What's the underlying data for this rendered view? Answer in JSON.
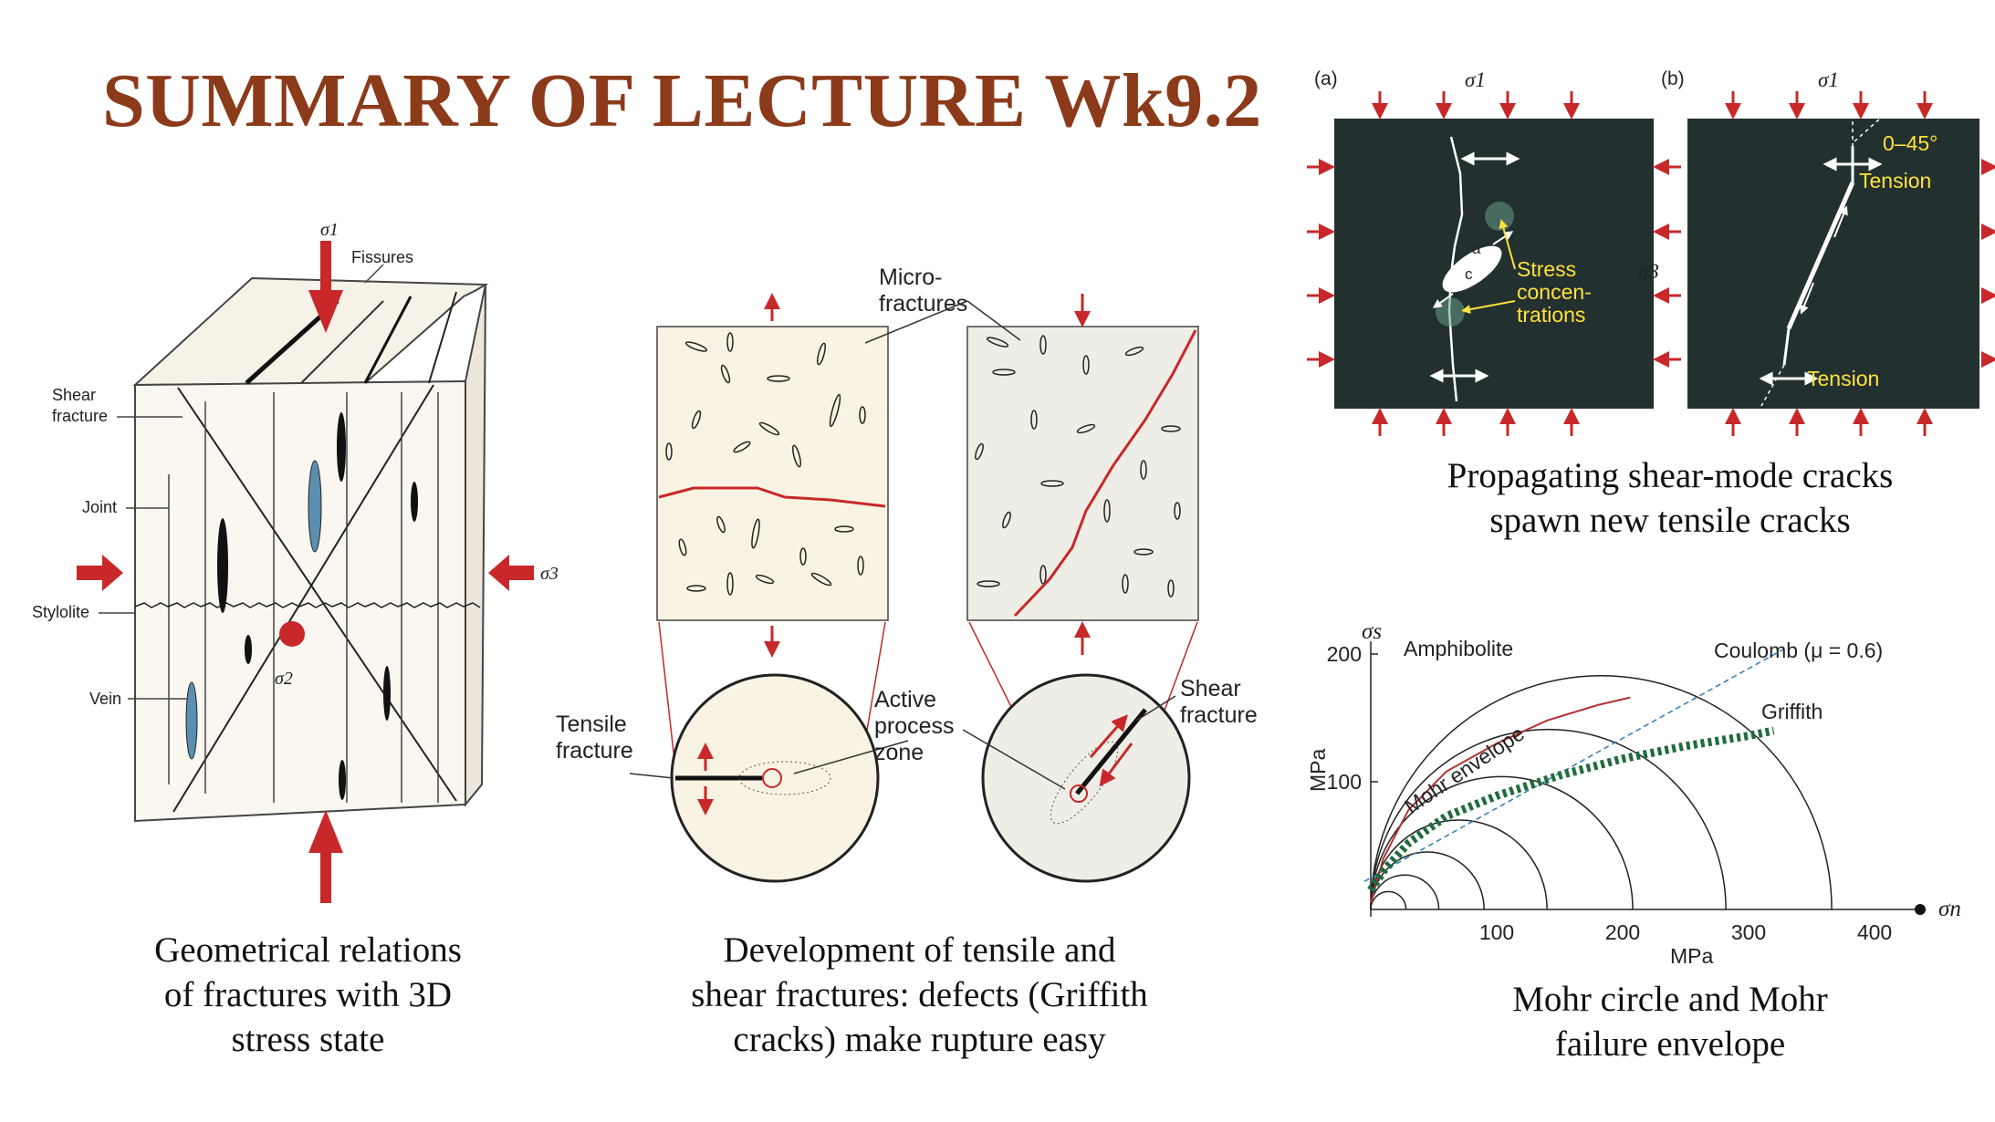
{
  "title": "SUMMARY OF LECTURE Wk9.2",
  "colors": {
    "title": "#8b3a1a",
    "arrow": "#c8282a",
    "dark_panel": "#233030",
    "highlight": "#ffe33a",
    "griffith": "#1f6b3c",
    "coulomb": "#2a7db5",
    "mohr_env": "#b43232",
    "cream": "#f8f3e2"
  },
  "fig1": {
    "labels": {
      "sigma1": "σ1",
      "sigma2": "σ2",
      "sigma3": "σ3",
      "fissures": "Fissures",
      "shear1": "Shear",
      "shear2": "fracture",
      "joint": "Joint",
      "stylolite": "Stylolite",
      "vein": "Vein"
    },
    "caption": [
      "Geometrical relations",
      "of fractures with 3D",
      "stress state"
    ]
  },
  "fig2": {
    "labels": {
      "micro1": "Micro-",
      "micro2": "fractures",
      "tensile1": "Tensile",
      "tensile2": "fracture",
      "active1": "Active",
      "active2": "process",
      "active3": "zone",
      "shear1": "Shear",
      "shear2": "fracture"
    },
    "caption": [
      "Development of tensile and",
      "shear fractures: defects (Griffith",
      "cracks) make rupture easy"
    ]
  },
  "fig3": {
    "labels": {
      "a": "(a)",
      "b": "(b)",
      "sigma1a": "σ1",
      "sigma1b": "σ1",
      "sigma3": "σ3",
      "stress1": "Stress",
      "stress2": "concen-",
      "stress3": "trations",
      "angle": "0–45°",
      "tension_top": "Tension",
      "tension_bottom": "Tension",
      "ell_a": "a",
      "ell_c": "c"
    },
    "caption": [
      "Propagating shear-mode cracks",
      "spawn new tensile cracks"
    ]
  },
  "fig4": {
    "labels": {
      "amphibolite": "Amphibolite",
      "coulomb": "Coulomb (μ = 0.6)",
      "griffith": "Griffith",
      "envelope": "Mohr envelope",
      "ylabel": "MPa",
      "xlabel": "MPa",
      "sigma_s": "σs",
      "sigma_n": "σn"
    },
    "x_ticks": [
      "100",
      "200",
      "300",
      "400"
    ],
    "y_ticks": [
      "100",
      "200"
    ],
    "caption": [
      "Mohr circle and Mohr",
      "failure envelope"
    ]
  },
  "chart_data": {
    "type": "line",
    "xlabel": "MPa",
    "ylabel": "MPa",
    "xlim": [
      0,
      430
    ],
    "ylim": [
      0,
      215
    ],
    "x_ticks": [
      100,
      200,
      300,
      400
    ],
    "y_ticks": [
      100,
      200
    ],
    "circles": [
      {
        "center": 14,
        "radius": 14
      },
      {
        "center": 27,
        "radius": 27
      },
      {
        "center": 45,
        "radius": 45
      },
      {
        "center": 70,
        "radius": 70
      },
      {
        "center": 104,
        "radius": 104
      },
      {
        "center": 141,
        "radius": 141
      },
      {
        "center": 183,
        "radius": 183
      }
    ],
    "series": [
      {
        "name": "Coulomb (μ = 0.6)",
        "x": [
          -5,
          330
        ],
        "y": [
          22,
          205
        ]
      },
      {
        "name": "Griffith",
        "x": [
          0,
          10,
          30,
          60,
          100,
          150,
          200,
          250,
          300,
          320
        ],
        "y": [
          15,
          30,
          52,
          73,
          89,
          105,
          118,
          128,
          136,
          140
        ]
      },
      {
        "name": "Mohr envelope",
        "x": [
          0,
          10,
          30,
          60,
          100,
          140,
          180,
          206
        ],
        "y": [
          5,
          40,
          78,
          108,
          130,
          148,
          160,
          166
        ]
      }
    ]
  }
}
